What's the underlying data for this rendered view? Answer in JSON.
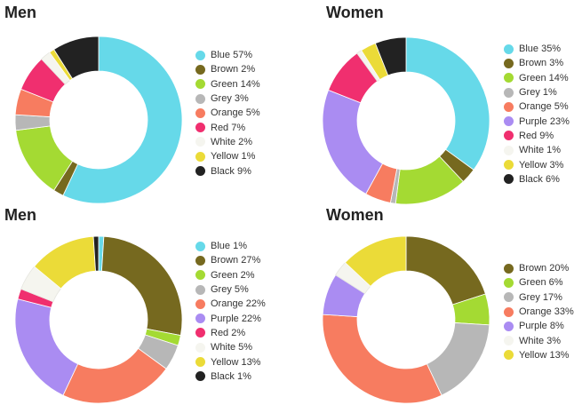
{
  "colors": {
    "Blue": "#66d9e9",
    "Brown": "#76691f",
    "Green": "#a4da33",
    "Grey": "#b7b7b7",
    "Orange": "#f77c60",
    "Purple": "#aa8cf2",
    "Red": "#f02f6f",
    "White": "#f5f5ef",
    "Yellow": "#ebdb38",
    "Black": "#222222"
  },
  "chart_data": [
    {
      "type": "pie",
      "title": "Men",
      "donut": true,
      "slices": [
        {
          "label": "Blue",
          "value": 57
        },
        {
          "label": "Brown",
          "value": 2
        },
        {
          "label": "Green",
          "value": 14
        },
        {
          "label": "Grey",
          "value": 3
        },
        {
          "label": "Orange",
          "value": 5
        },
        {
          "label": "Red",
          "value": 7
        },
        {
          "label": "White",
          "value": 2
        },
        {
          "label": "Yellow",
          "value": 1
        },
        {
          "label": "Black",
          "value": 9
        }
      ]
    },
    {
      "type": "pie",
      "title": "Women",
      "donut": true,
      "slices": [
        {
          "label": "Blue",
          "value": 35
        },
        {
          "label": "Brown",
          "value": 3
        },
        {
          "label": "Green",
          "value": 14
        },
        {
          "label": "Grey",
          "value": 1
        },
        {
          "label": "Orange",
          "value": 5
        },
        {
          "label": "Purple",
          "value": 23
        },
        {
          "label": "Red",
          "value": 9
        },
        {
          "label": "White",
          "value": 1
        },
        {
          "label": "Yellow",
          "value": 3
        },
        {
          "label": "Black",
          "value": 6
        }
      ]
    },
    {
      "type": "pie",
      "title": "Men",
      "donut": true,
      "slices": [
        {
          "label": "Blue",
          "value": 1
        },
        {
          "label": "Brown",
          "value": 27
        },
        {
          "label": "Green",
          "value": 2
        },
        {
          "label": "Grey",
          "value": 5
        },
        {
          "label": "Orange",
          "value": 22
        },
        {
          "label": "Purple",
          "value": 22
        },
        {
          "label": "Red",
          "value": 2
        },
        {
          "label": "White",
          "value": 5
        },
        {
          "label": "Yellow",
          "value": 13
        },
        {
          "label": "Black",
          "value": 1
        }
      ]
    },
    {
      "type": "pie",
      "title": "Women",
      "donut": true,
      "slices": [
        {
          "label": "Brown",
          "value": 20
        },
        {
          "label": "Green",
          "value": 6
        },
        {
          "label": "Grey",
          "value": 17
        },
        {
          "label": "Orange",
          "value": 33
        },
        {
          "label": "Purple",
          "value": 8
        },
        {
          "label": "White",
          "value": 3
        },
        {
          "label": "Yellow",
          "value": 13
        }
      ]
    }
  ]
}
